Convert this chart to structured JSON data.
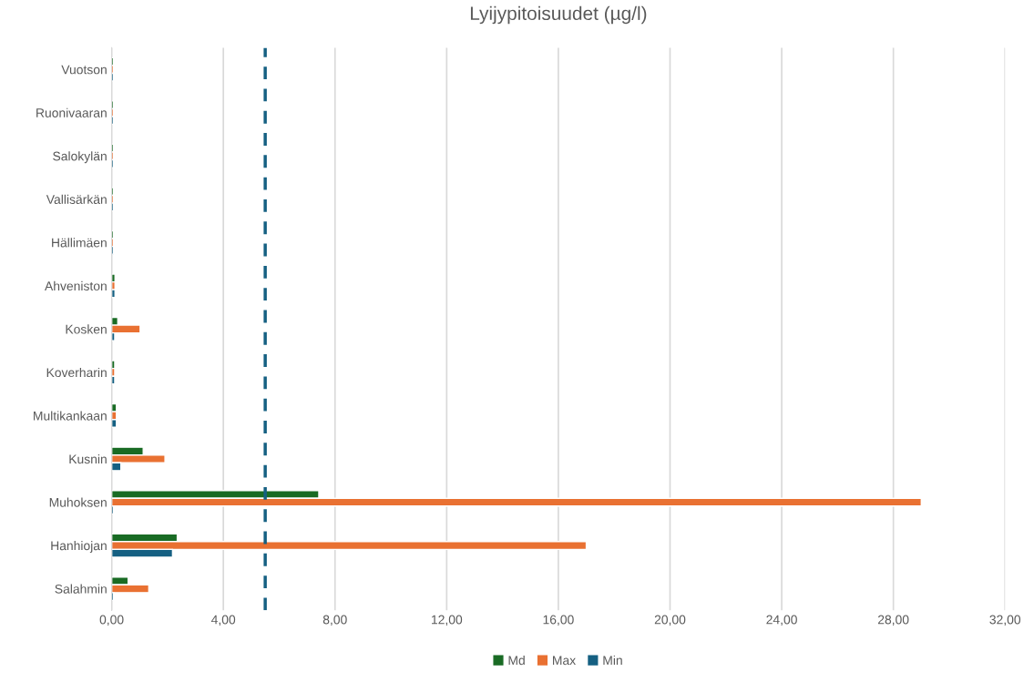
{
  "chart_data": {
    "type": "bar",
    "orientation": "horizontal",
    "title": "Lyijypitoisuudet (µg/l)",
    "categories": [
      "Vuotson",
      "Ruonivaaran",
      "Salokylän",
      "Vallisärkän",
      "Hällimäen",
      "Ahveniston",
      "Kosken",
      "Koverharin",
      "Multikankaan",
      "Kusnin",
      "Muhoksen",
      "Hanhiojan",
      "Salahmin"
    ],
    "series": [
      {
        "name": "Md",
        "color": "#196b24",
        "values": [
          0.07,
          0.07,
          0.07,
          0.07,
          0.07,
          0.12,
          0.22,
          0.11,
          0.17,
          1.13,
          7.42,
          2.35,
          0.59
        ]
      },
      {
        "name": "Max",
        "color": "#e97132",
        "values": [
          0.07,
          0.07,
          0.07,
          0.07,
          0.07,
          0.12,
          1.02,
          0.11,
          0.17,
          1.91,
          29.0,
          17.0,
          1.33
        ]
      },
      {
        "name": "Min",
        "color": "#156082",
        "values": [
          0.07,
          0.07,
          0.07,
          0.07,
          0.07,
          0.12,
          0.11,
          0.11,
          0.17,
          0.33,
          0.07,
          2.18,
          0.07
        ]
      }
    ],
    "xlim": [
      0,
      32
    ],
    "xticks": [
      {
        "value": 0,
        "label": "0,00"
      },
      {
        "value": 4,
        "label": "4,00"
      },
      {
        "value": 8,
        "label": "8,00"
      },
      {
        "value": 12,
        "label": "12,00"
      },
      {
        "value": 16,
        "label": "16,00"
      },
      {
        "value": 20,
        "label": "20,00"
      },
      {
        "value": 24,
        "label": "24,00"
      },
      {
        "value": 28,
        "label": "28,00"
      },
      {
        "value": 32,
        "label": "32,00"
      }
    ],
    "ref_lines": [
      {
        "axis": "x",
        "value": 5.5,
        "color": "#156082",
        "line_style": "dashed"
      }
    ],
    "grid": "x",
    "legend": "bottom"
  }
}
